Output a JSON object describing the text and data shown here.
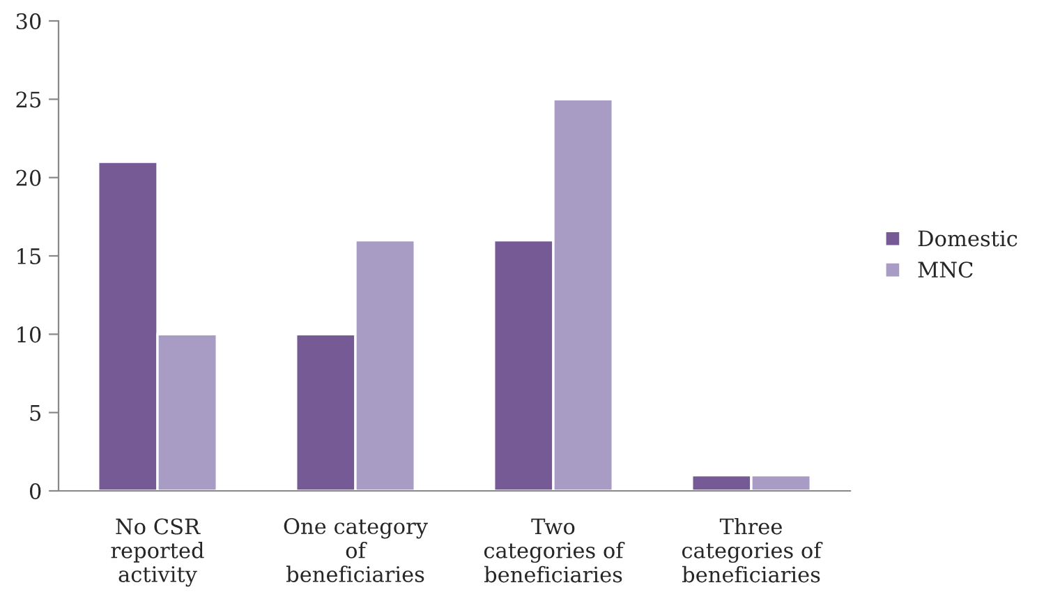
{
  "chart_data": {
    "type": "bar",
    "categories": [
      "No CSR\nreported\nactivity",
      "One category\nof\nbeneficiaries",
      "Two\ncategories of\nbeneficiaries",
      "Three\ncategories of\nbeneficiaries"
    ],
    "series": [
      {
        "name": "Domestic",
        "color": "#765a96",
        "values": [
          21,
          10,
          16,
          1
        ]
      },
      {
        "name": "MNC",
        "color": "#a99cc4",
        "values": [
          10,
          16,
          25,
          1
        ]
      }
    ],
    "ylim": [
      0,
      30
    ],
    "yticks": [
      0,
      5,
      10,
      15,
      20,
      25,
      30
    ],
    "grid": false,
    "legend": "right"
  }
}
